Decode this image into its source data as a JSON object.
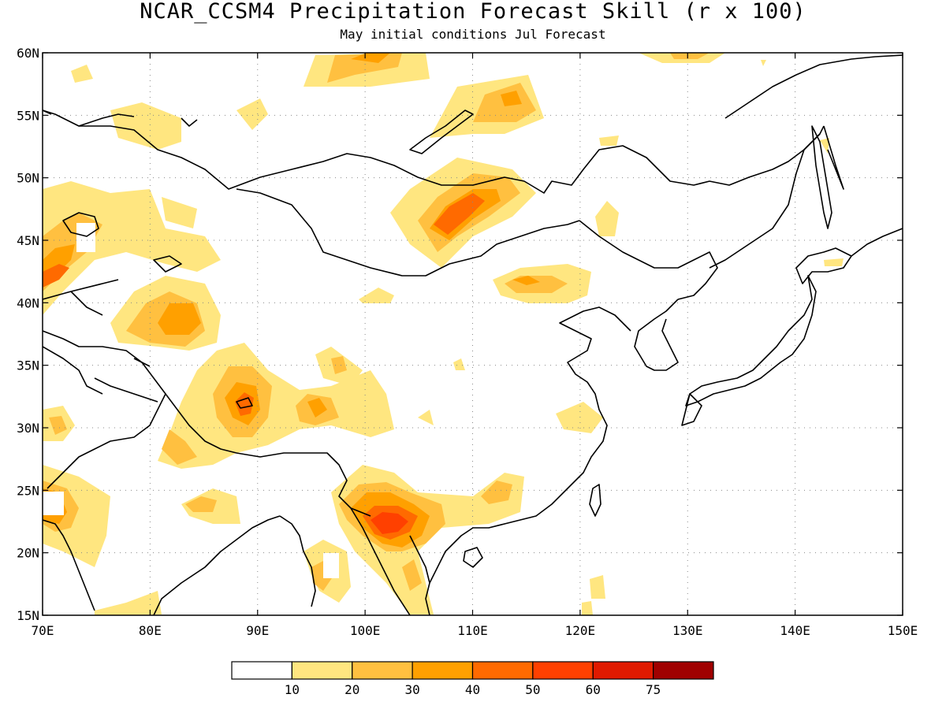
{
  "title": "NCAR_CCSM4 Precipitation Forecast Skill (r x 100)",
  "subtitle": "May initial conditions  Jul Forecast",
  "map": {
    "lon_range": [
      70,
      150
    ],
    "lat_range": [
      15,
      60
    ],
    "lon_ticks": [
      "70E",
      "80E",
      "90E",
      "100E",
      "110E",
      "120E",
      "130E",
      "140E",
      "150E"
    ],
    "lat_ticks": [
      "60N",
      "55N",
      "50N",
      "45N",
      "40N",
      "35N",
      "30N",
      "25N",
      "20N",
      "15N"
    ],
    "grid": "dotted"
  },
  "colorbar": {
    "labels": [
      "10",
      "20",
      "30",
      "40",
      "50",
      "60",
      "75"
    ],
    "colors": [
      "#ffffff",
      "#ffe680",
      "#ffc040",
      "#ffa000",
      "#ff6a00",
      "#ff4000",
      "#e01a00",
      "#a00000"
    ]
  },
  "skill_regions": [
    {
      "lon": 103.5,
      "lat": 22.5,
      "rx": 5.0,
      "ry": 3.5,
      "level": 3
    },
    {
      "lon": 103,
      "lat": 22.5,
      "rx": 3.5,
      "ry": 2.0,
      "level": 5
    },
    {
      "lon": 108,
      "lat": 46.5,
      "rx": 5.0,
      "ry": 3.0,
      "level": 3
    },
    {
      "lon": 108,
      "lat": 46.5,
      "rx": 3.0,
      "ry": 1.8,
      "level": 4
    },
    {
      "lon": 88.5,
      "lat": 31.5,
      "rx": 4.0,
      "ry": 4.0,
      "level": 2
    },
    {
      "lon": 88.8,
      "lat": 32.0,
      "rx": 1.5,
      "ry": 1.5,
      "level": 4
    },
    {
      "lon": 83.5,
      "lat": 39.5,
      "rx": 5.5,
      "ry": 3.5,
      "level": 2
    },
    {
      "lon": 83.5,
      "lat": 39.5,
      "rx": 2.5,
      "ry": 2.0,
      "level": 3
    },
    {
      "lon": 73,
      "lat": 43.5,
      "rx": 4.0,
      "ry": 2.5,
      "level": 2
    },
    {
      "lon": 72,
      "lat": 23.5,
      "rx": 3.0,
      "ry": 3.0,
      "level": 2
    },
    {
      "lon": 116,
      "lat": 41.5,
      "rx": 4.0,
      "ry": 1.8,
      "level": 2
    },
    {
      "lon": 114,
      "lat": 56.5,
      "rx": 3.0,
      "ry": 2.5,
      "level": 2
    },
    {
      "lon": 95,
      "lat": 31.5,
      "rx": 3.0,
      "ry": 2.0,
      "level": 2
    },
    {
      "lon": 85,
      "lat": 24,
      "rx": 3.0,
      "ry": 1.2,
      "level": 2
    },
    {
      "lon": 101,
      "lat": 59.5,
      "rx": 3.0,
      "ry": 1.5,
      "level": 2
    }
  ]
}
